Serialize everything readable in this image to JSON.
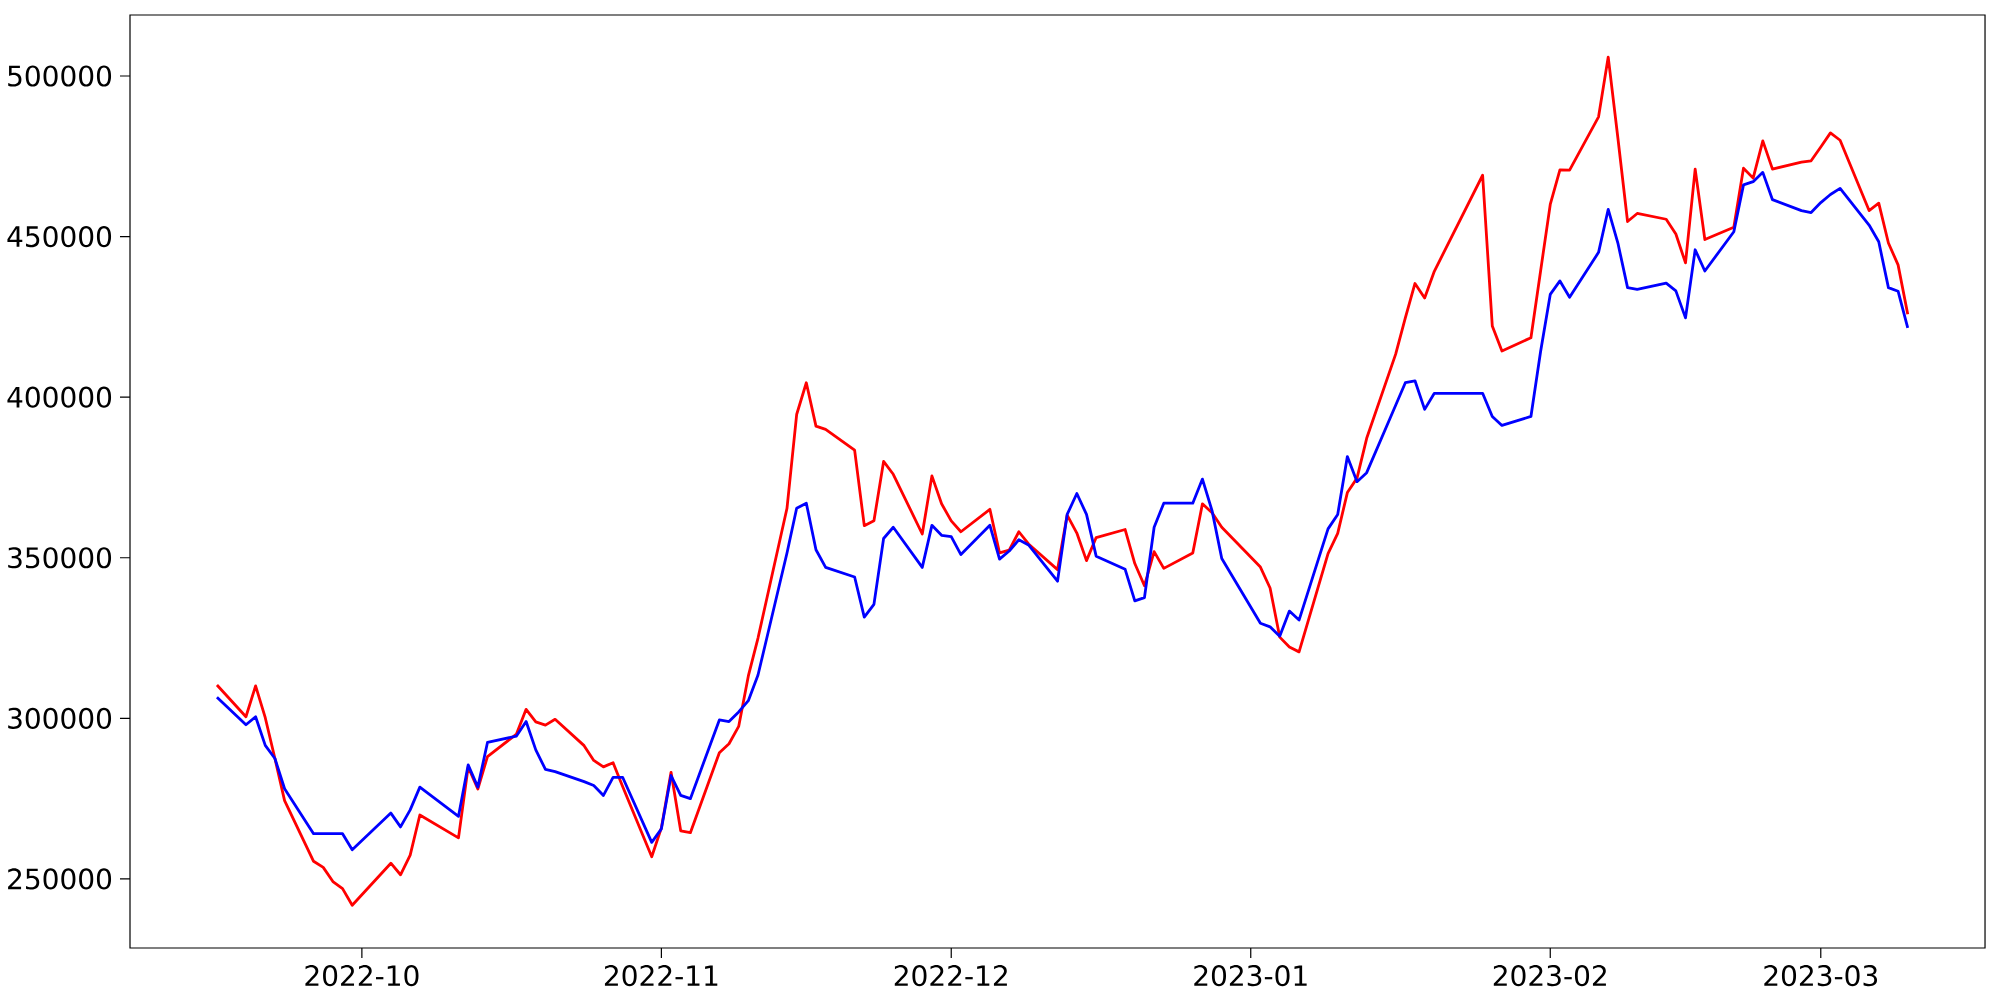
{
  "chart_data": {
    "type": "line",
    "x": [
      "2022-09-16",
      "2022-09-19",
      "2022-09-20",
      "2022-09-21",
      "2022-09-22",
      "2022-09-23",
      "2022-09-26",
      "2022-09-27",
      "2022-09-28",
      "2022-09-29",
      "2022-09-30",
      "2022-10-04",
      "2022-10-05",
      "2022-10-06",
      "2022-10-07",
      "2022-10-11",
      "2022-10-12",
      "2022-10-13",
      "2022-10-14",
      "2022-10-17",
      "2022-10-18",
      "2022-10-19",
      "2022-10-20",
      "2022-10-21",
      "2022-10-24",
      "2022-10-25",
      "2022-10-26",
      "2022-10-27",
      "2022-10-28",
      "2022-10-31",
      "2022-11-01",
      "2022-11-02",
      "2022-11-03",
      "2022-11-04",
      "2022-11-07",
      "2022-11-08",
      "2022-11-09",
      "2022-11-10",
      "2022-11-11",
      "2022-11-14",
      "2022-11-15",
      "2022-11-16",
      "2022-11-17",
      "2022-11-18",
      "2022-11-21",
      "2022-11-22",
      "2022-11-23",
      "2022-11-24",
      "2022-11-25",
      "2022-11-28",
      "2022-11-29",
      "2022-11-30",
      "2022-12-01",
      "2022-12-02",
      "2022-12-05",
      "2022-12-06",
      "2022-12-07",
      "2022-12-08",
      "2022-12-09",
      "2022-12-12",
      "2022-12-13",
      "2022-12-14",
      "2022-12-15",
      "2022-12-16",
      "2022-12-19",
      "2022-12-20",
      "2022-12-21",
      "2022-12-22",
      "2022-12-23",
      "2022-12-26",
      "2022-12-27",
      "2022-12-28",
      "2022-12-29",
      "2023-01-02",
      "2023-01-03",
      "2023-01-04",
      "2023-01-05",
      "2023-01-06",
      "2023-01-09",
      "2023-01-10",
      "2023-01-11",
      "2023-01-12",
      "2023-01-13",
      "2023-01-16",
      "2023-01-17",
      "2023-01-18",
      "2023-01-19",
      "2023-01-20",
      "2023-01-25",
      "2023-01-26",
      "2023-01-27",
      "2023-01-30",
      "2023-01-31",
      "2023-02-01",
      "2023-02-02",
      "2023-02-03",
      "2023-02-06",
      "2023-02-07",
      "2023-02-08",
      "2023-02-09",
      "2023-02-10",
      "2023-02-13",
      "2023-02-14",
      "2023-02-15",
      "2023-02-16",
      "2023-02-17",
      "2023-02-20",
      "2023-02-21",
      "2023-02-22",
      "2023-02-23",
      "2023-02-24",
      "2023-02-27",
      "2023-02-28",
      "2023-03-01",
      "2023-03-02",
      "2023-03-03",
      "2023-03-06",
      "2023-03-07",
      "2023-03-08",
      "2023-03-09",
      "2023-03-10"
    ],
    "series": [
      {
        "color": "#ff0000",
        "values": [
          310400,
          300500,
          310100,
          300200,
          287500,
          274400,
          255500,
          253600,
          249200,
          247000,
          241800,
          254900,
          251300,
          257400,
          269900,
          262800,
          284900,
          278000,
          288100,
          295100,
          302800,
          298900,
          297900,
          299700,
          291500,
          286900,
          284900,
          286200,
          278700,
          256900,
          265900,
          283200,
          265000,
          264400,
          289300,
          292100,
          297500,
          313200,
          325000,
          365400,
          394600,
          404500,
          391000,
          390000,
          383500,
          360000,
          361500,
          380000,
          376000,
          357400,
          375500,
          366800,
          361500,
          358100,
          365100,
          351500,
          352400,
          358100,
          354300,
          346300,
          363300,
          357700,
          349100,
          356300,
          358800,
          348200,
          341300,
          351900,
          346700,
          351500,
          366800,
          364000,
          359500,
          347100,
          340600,
          325300,
          322200,
          320700,
          351300,
          357600,
          370300,
          374800,
          387200,
          413400,
          424700,
          435400,
          430900,
          439200,
          469100,
          422200,
          414400,
          418500,
          439300,
          460000,
          470800,
          470700,
          487300,
          505900,
          480700,
          454700,
          457200,
          455400,
          450800,
          441800,
          471000,
          449100,
          452900,
          471300,
          468200,
          479800,
          471000,
          473200,
          473600,
          477900,
          482300,
          480000,
          458100,
          460400,
          448000,
          441200,
          425800
        ]
      },
      {
        "color": "#0000ff",
        "values": [
          306600,
          298000,
          300500,
          291600,
          287500,
          278100,
          264100,
          264100,
          264100,
          264100,
          259100,
          270500,
          266200,
          271500,
          278600,
          269500,
          285500,
          278600,
          292500,
          294500,
          299000,
          290200,
          284100,
          283400,
          280300,
          279100,
          276000,
          281600,
          281600,
          261400,
          265600,
          282200,
          276000,
          275000,
          299500,
          299000,
          302000,
          305500,
          313500,
          351500,
          365400,
          367000,
          352500,
          347000,
          344000,
          331500,
          335500,
          356000,
          359500,
          347000,
          360100,
          357000,
          356600,
          351000,
          360100,
          349600,
          352100,
          355600,
          354000,
          342700,
          363500,
          370000,
          363500,
          350500,
          346400,
          336600,
          337600,
          359500,
          367000,
          367000,
          374500,
          364600,
          349800,
          329600,
          328500,
          325600,
          333400,
          330600,
          359000,
          363500,
          381500,
          373700,
          376500,
          397500,
          404500,
          405100,
          396200,
          401200,
          401200,
          394000,
          391200,
          394000,
          414200,
          432000,
          436200,
          431100,
          445100,
          458500,
          448000,
          434100,
          433600,
          435500,
          433100,
          424700,
          445900,
          439300,
          451500,
          466100,
          467100,
          470000,
          461500,
          458100,
          457500,
          460600,
          463100,
          465000,
          453600,
          448400,
          434100,
          433000,
          421600
        ]
      }
    ],
    "xlim": [
      "2022-09-07",
      "2023-03-18"
    ],
    "xticks": [
      {
        "value": "2022-10-01",
        "label": "2022-10"
      },
      {
        "value": "2022-11-01",
        "label": "2022-11"
      },
      {
        "value": "2022-12-01",
        "label": "2022-12"
      },
      {
        "value": "2023-01-01",
        "label": "2023-01"
      },
      {
        "value": "2023-02-01",
        "label": "2023-02"
      },
      {
        "value": "2023-03-01",
        "label": "2023-03"
      }
    ],
    "ylim": [
      228500,
      519000
    ],
    "yticks": [
      250000,
      300000,
      350000,
      400000,
      450000,
      500000
    ]
  }
}
